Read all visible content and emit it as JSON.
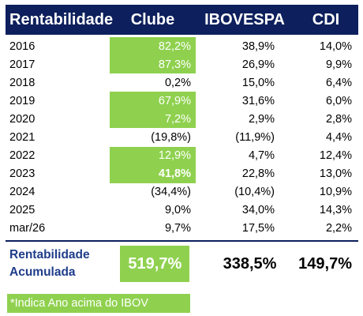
{
  "header": {
    "col_rent": "Rentabilidade",
    "col_clube": "Clube",
    "col_ibov": "IBOVESPA",
    "col_cdi": "CDI"
  },
  "rows": [
    {
      "year": "2016",
      "clube": "82,2%",
      "ibov": "38,9%",
      "cdi": "14,0%",
      "highlight": true
    },
    {
      "year": "2017",
      "clube": "87,3%",
      "ibov": "26,9%",
      "cdi": "9,9%",
      "highlight": true
    },
    {
      "year": "2018",
      "clube": "0,2%",
      "ibov": "15,0%",
      "cdi": "6,4%",
      "highlight": false
    },
    {
      "year": "2019",
      "clube": "67,9%",
      "ibov": "31,6%",
      "cdi": "6,0%",
      "highlight": true
    },
    {
      "year": "2020",
      "clube": "7,2%",
      "ibov": "2,9%",
      "cdi": "2,8%",
      "highlight": true
    },
    {
      "year": "2021",
      "clube": "(19,8%)",
      "ibov": "(11,9%)",
      "cdi": "4,4%",
      "highlight": false
    },
    {
      "year": "2022",
      "clube": "12,9%",
      "ibov": "4,7%",
      "cdi": "12,4%",
      "highlight": true
    },
    {
      "year": "2023",
      "clube": "41,8%",
      "ibov": "22,8%",
      "cdi": "13,0%",
      "highlight": true,
      "bold": true
    },
    {
      "year": "2024",
      "clube": "(34,4%)",
      "ibov": "(10,4%)",
      "cdi": "10,9%",
      "highlight": false
    },
    {
      "year": "2025",
      "clube": "9,0%",
      "ibov": "34,0%",
      "cdi": "14,3%",
      "highlight": false
    },
    {
      "year": "mar/26",
      "clube": "9,7%",
      "ibov": "17,5%",
      "cdi": "2,2%",
      "highlight": false
    }
  ],
  "total": {
    "label_line1": "Rentabilidade",
    "label_line2": "Acumulada",
    "clube": "519,7%",
    "ibov": "338,5%",
    "cdi": "149,7%"
  },
  "footnote": "*Indica Ano acima do IBOV",
  "colors": {
    "header_bg": "#0d1f5c",
    "highlight_green": "#8fd14f",
    "total_label": "#1f3d8a"
  }
}
